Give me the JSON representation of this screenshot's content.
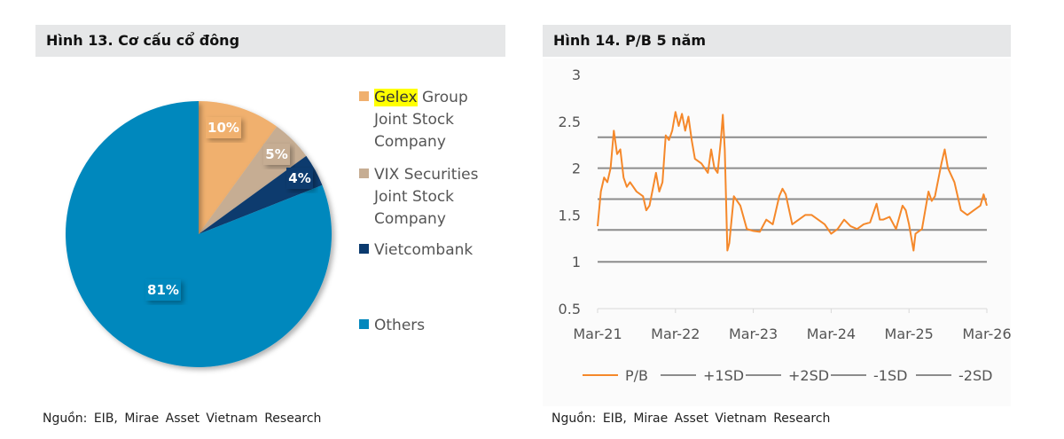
{
  "left": {
    "title": "Hình 13. Cơ cấu cổ đông",
    "source": "Nguồn: EIB, Mirae Asset Vietnam Research"
  },
  "right": {
    "title": "Hình 14. P/B 5 năm",
    "source": "Nguồn: EIB, Mirae Asset Vietnam Research"
  },
  "chart_data": [
    {
      "type": "pie",
      "title": "Hình 13. Cơ cấu cổ đông",
      "legend_position": "right",
      "slices": [
        {
          "name": "Gelex Group Joint Stock Company",
          "name_highlight": "Gelex",
          "name_rest": " Group",
          "lines": [
            "Joint Stock",
            "Company"
          ],
          "value": 10,
          "label": "10%",
          "color": "#f0b06e"
        },
        {
          "name": "VIX Securities Joint Stock Company",
          "name_highlight": "",
          "name_rest": "VIX Securities",
          "lines": [
            "Joint Stock",
            "Company"
          ],
          "value": 5,
          "label": "5%",
          "color": "#c6ad93"
        },
        {
          "name": "Vietcombank",
          "name_highlight": "",
          "name_rest": "Vietcombank",
          "lines": [],
          "value": 4,
          "label": "4%",
          "color": "#0b3a6e"
        },
        {
          "name": "Others",
          "name_highlight": "",
          "name_rest": "Others",
          "lines": [],
          "value": 81,
          "label": "81%",
          "color": "#0388bd"
        }
      ]
    },
    {
      "type": "line",
      "title": "Hình 14. P/B 5 năm",
      "x_unit": "months since Mar-21",
      "xticks": [
        "Mar-21",
        "Mar-22",
        "Mar-23",
        "Mar-24",
        "Mar-25",
        "Mar-26"
      ],
      "yticks": [
        "0.5",
        "1",
        "1.5",
        "2",
        "2.5",
        "3"
      ],
      "ylim": [
        0.5,
        3
      ],
      "xlim": [
        0,
        60
      ],
      "grid": false,
      "legend_position": "bottom",
      "series": [
        {
          "name": "P/B",
          "color": "#f5882a",
          "x": [
            0,
            0.5,
            1,
            1.5,
            2,
            2.5,
            3,
            3.5,
            4,
            4.5,
            5,
            6,
            7,
            7.5,
            8,
            9,
            9.5,
            10,
            10.5,
            11,
            11.5,
            12,
            12.5,
            13,
            13.5,
            14,
            14.5,
            15,
            16,
            17,
            17.5,
            18,
            18.5,
            19,
            19.3,
            19.6,
            20,
            20.3,
            21,
            22,
            23,
            24,
            25,
            26,
            27,
            28,
            28.5,
            29,
            30,
            31,
            32,
            33,
            34,
            35,
            36,
            37,
            38,
            39,
            40,
            41,
            42,
            43,
            43.5,
            44,
            45,
            46,
            47,
            47.5,
            48,
            48.7,
            49,
            50,
            51,
            51.5,
            52,
            53,
            53.5,
            54,
            55,
            56,
            57,
            58,
            59,
            59.5,
            60
          ],
          "y": [
            1.38,
            1.75,
            1.9,
            1.85,
            2.0,
            2.4,
            2.15,
            2.2,
            1.9,
            1.8,
            1.85,
            1.75,
            1.7,
            1.55,
            1.6,
            1.95,
            1.75,
            1.85,
            2.35,
            2.3,
            2.4,
            2.6,
            2.45,
            2.58,
            2.4,
            2.55,
            2.3,
            2.1,
            2.05,
            1.95,
            2.2,
            2.0,
            1.95,
            2.3,
            2.57,
            2.2,
            1.12,
            1.2,
            1.7,
            1.6,
            1.35,
            1.33,
            1.32,
            1.45,
            1.4,
            1.7,
            1.78,
            1.72,
            1.4,
            1.45,
            1.5,
            1.5,
            1.45,
            1.4,
            1.3,
            1.35,
            1.45,
            1.38,
            1.35,
            1.4,
            1.42,
            1.62,
            1.45,
            1.45,
            1.48,
            1.35,
            1.6,
            1.55,
            1.4,
            1.12,
            1.3,
            1.35,
            1.75,
            1.65,
            1.7,
            2.05,
            2.2,
            2.0,
            1.85,
            1.55,
            1.5,
            1.55,
            1.6,
            1.72,
            1.6
          ]
        },
        {
          "name": "+1SD",
          "color": "#8c8c8c",
          "constant": 2.0
        },
        {
          "name": "+2SD",
          "color": "#8c8c8c",
          "constant": 2.33
        },
        {
          "name": "-1SD",
          "color": "#8c8c8c",
          "constant": 1.34
        },
        {
          "name": "-2SD",
          "color": "#8c8c8c",
          "constant": 1.0
        },
        {
          "name": "",
          "color": "#8c8c8c",
          "constant": 1.67
        }
      ]
    }
  ]
}
